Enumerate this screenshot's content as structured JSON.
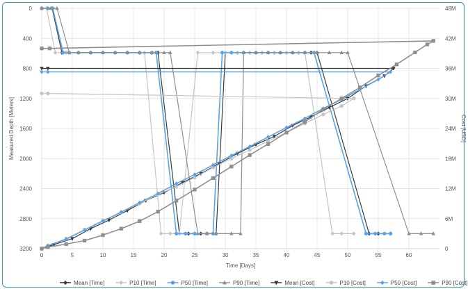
{
  "chart_data": {
    "type": "line",
    "x_axis": {
      "title": "Time [Days]",
      "range": [
        0,
        65
      ],
      "ticks": [
        0,
        5,
        10,
        15,
        20,
        25,
        30,
        35,
        40,
        45,
        50,
        55,
        60
      ]
    },
    "y_left": {
      "title": "Measured Depth [Meters]",
      "range": [
        0,
        3200
      ],
      "reversed": true,
      "ticks": [
        0,
        400,
        800,
        1200,
        1600,
        2000,
        2400,
        2800,
        3200
      ]
    },
    "y_right": {
      "title": "Cost [USD]",
      "range": [
        0,
        48
      ],
      "unit": "M",
      "ticks": [
        "0",
        "6M",
        "12M",
        "18M",
        "24M",
        "30M",
        "36M",
        "42M",
        "48M"
      ],
      "tick_values": [
        0,
        6,
        12,
        18,
        24,
        30,
        36,
        42,
        48
      ]
    },
    "grid": true,
    "legend_position": "bottom",
    "series": [
      {
        "name": "Mean [Time]",
        "axis": "left",
        "color": "#3a3a3a",
        "marker": "diamond",
        "width": 1.2,
        "points": [
          [
            0,
            0
          ],
          [
            1,
            0
          ],
          [
            1.7,
            0
          ],
          [
            3.3,
            590
          ],
          [
            4,
            590
          ],
          [
            6,
            590
          ],
          [
            8,
            590
          ],
          [
            10,
            590
          ],
          [
            12,
            590
          ],
          [
            14,
            590
          ],
          [
            16,
            590
          ],
          [
            18,
            590
          ],
          [
            19,
            590
          ],
          [
            22.5,
            3000
          ],
          [
            24,
            3000
          ],
          [
            26,
            3000
          ],
          [
            28.5,
            3000
          ],
          [
            30,
            590
          ],
          [
            32,
            590
          ],
          [
            34,
            590
          ],
          [
            36,
            590
          ],
          [
            38,
            590
          ],
          [
            40,
            590
          ],
          [
            42,
            590
          ],
          [
            44,
            590
          ],
          [
            45,
            590
          ],
          [
            53.5,
            3000
          ],
          [
            55,
            3000
          ],
          [
            57,
            3000
          ]
        ]
      },
      {
        "name": "P10 [Time]",
        "axis": "left",
        "color": "#c4c4c4",
        "marker": "diamond",
        "width": 1.2,
        "points": [
          [
            0,
            0
          ],
          [
            0.8,
            0
          ],
          [
            2.2,
            590
          ],
          [
            4,
            590
          ],
          [
            6,
            590
          ],
          [
            8,
            590
          ],
          [
            10,
            590
          ],
          [
            12,
            590
          ],
          [
            14,
            590
          ],
          [
            16,
            590
          ],
          [
            16.8,
            590
          ],
          [
            19.5,
            3000
          ],
          [
            21,
            3000
          ],
          [
            22.5,
            3000
          ],
          [
            25.5,
            590
          ],
          [
            28,
            590
          ],
          [
            30,
            590
          ],
          [
            32,
            590
          ],
          [
            34,
            590
          ],
          [
            36,
            590
          ],
          [
            38,
            590
          ],
          [
            40,
            590
          ],
          [
            42,
            590
          ],
          [
            43,
            590
          ],
          [
            47.5,
            3000
          ],
          [
            49,
            3000
          ],
          [
            51,
            3000
          ]
        ]
      },
      {
        "name": "P50 [Time]",
        "axis": "left",
        "color": "#5aa3e6",
        "marker": "circle",
        "width": 1.6,
        "points": [
          [
            0,
            0
          ],
          [
            1,
            0
          ],
          [
            1.8,
            0
          ],
          [
            3.5,
            590
          ],
          [
            4.5,
            590
          ],
          [
            6,
            590
          ],
          [
            8,
            590
          ],
          [
            10,
            590
          ],
          [
            12,
            590
          ],
          [
            14,
            590
          ],
          [
            16,
            590
          ],
          [
            18,
            590
          ],
          [
            18.7,
            590
          ],
          [
            22,
            3000
          ],
          [
            23.5,
            3000
          ],
          [
            25,
            3000
          ],
          [
            27,
            3000
          ],
          [
            28,
            3000
          ],
          [
            29.5,
            590
          ],
          [
            31,
            590
          ],
          [
            33,
            590
          ],
          [
            35,
            590
          ],
          [
            37,
            590
          ],
          [
            39,
            590
          ],
          [
            41,
            590
          ],
          [
            43,
            590
          ],
          [
            44.5,
            590
          ],
          [
            53,
            3000
          ],
          [
            54.5,
            3000
          ],
          [
            56,
            3000
          ],
          [
            57,
            3000
          ]
        ]
      },
      {
        "name": "P90 [Time]",
        "axis": "left",
        "color": "#8f8f8f",
        "marker": "triangle",
        "width": 1.2,
        "points": [
          [
            0,
            0
          ],
          [
            1.5,
            0
          ],
          [
            2.5,
            0
          ],
          [
            4.5,
            590
          ],
          [
            6,
            590
          ],
          [
            8,
            590
          ],
          [
            10,
            590
          ],
          [
            12,
            590
          ],
          [
            14,
            590
          ],
          [
            16,
            590
          ],
          [
            18,
            590
          ],
          [
            20,
            590
          ],
          [
            21,
            590
          ],
          [
            25.5,
            3000
          ],
          [
            27,
            3000
          ],
          [
            28.5,
            3000
          ],
          [
            31,
            3000
          ],
          [
            32.5,
            3000
          ],
          [
            33,
            590
          ],
          [
            35,
            590
          ],
          [
            37,
            590
          ],
          [
            39,
            590
          ],
          [
            41,
            590
          ],
          [
            43,
            590
          ],
          [
            45,
            590
          ],
          [
            47,
            590
          ],
          [
            49,
            590
          ],
          [
            50,
            590
          ],
          [
            60,
            3000
          ],
          [
            62,
            3000
          ],
          [
            64,
            3000
          ]
        ]
      },
      {
        "name": "Mean [Cost]",
        "axis": "right",
        "color": "#3a3a3a",
        "marker": "triangle-down",
        "width": 1.2,
        "points": [
          [
            0,
            36
          ],
          [
            1,
            36
          ],
          [
            57.5,
            36
          ],
          [
            56,
            34.5
          ],
          [
            53,
            32.5
          ],
          [
            50,
            30
          ],
          [
            47,
            28.2
          ],
          [
            44,
            26.3
          ],
          [
            41,
            24.6
          ],
          [
            38,
            22.4
          ],
          [
            35,
            20.8
          ],
          [
            32,
            19
          ],
          [
            29,
            17
          ],
          [
            26,
            15
          ],
          [
            23,
            13.2
          ],
          [
            20,
            11.2
          ],
          [
            17,
            9.6
          ],
          [
            14,
            7.6
          ],
          [
            11,
            5.7
          ],
          [
            8,
            4
          ],
          [
            5,
            2
          ],
          [
            2,
            0.8
          ],
          [
            0,
            0
          ]
        ]
      },
      {
        "name": "P10 [Cost]",
        "axis": "right",
        "color": "#c4c4c4",
        "marker": "circle",
        "width": 1.2,
        "points": [
          [
            0,
            31
          ],
          [
            1,
            31
          ],
          [
            51,
            30
          ],
          [
            49,
            28.5
          ],
          [
            46,
            26.8
          ],
          [
            43,
            25
          ],
          [
            40,
            23.2
          ],
          [
            37,
            21.5
          ],
          [
            34,
            19.7
          ],
          [
            31,
            18
          ],
          [
            28,
            16.2
          ],
          [
            25,
            14.2
          ],
          [
            22,
            12.4
          ],
          [
            19,
            10.8
          ],
          [
            16,
            9
          ],
          [
            13,
            7.3
          ],
          [
            10,
            5.6
          ],
          [
            7,
            3.8
          ],
          [
            4,
            2
          ],
          [
            1,
            0.6
          ],
          [
            0,
            0
          ]
        ]
      },
      {
        "name": "P50 [Cost]",
        "axis": "right",
        "color": "#5aa3e6",
        "marker": "diamond",
        "width": 1.6,
        "points": [
          [
            0,
            35.3
          ],
          [
            1,
            35.3
          ],
          [
            57,
            35.3
          ],
          [
            55,
            33.8
          ],
          [
            52,
            31.8
          ],
          [
            49,
            29.8
          ],
          [
            46,
            28
          ],
          [
            43,
            26
          ],
          [
            40,
            24.2
          ],
          [
            37,
            22.3
          ],
          [
            34,
            20.4
          ],
          [
            31,
            18.6
          ],
          [
            28,
            16.7
          ],
          [
            25,
            14.8
          ],
          [
            22,
            13
          ],
          [
            19,
            11
          ],
          [
            16,
            9.2
          ],
          [
            13,
            7.3
          ],
          [
            10,
            5.5
          ],
          [
            7,
            3.7
          ],
          [
            4,
            1.9
          ],
          [
            1,
            0.6
          ],
          [
            0,
            0
          ]
        ]
      },
      {
        "name": "P90 [Cost]",
        "axis": "right",
        "color": "#8f8f8f",
        "marker": "square",
        "width": 1.6,
        "points": [
          [
            0,
            40
          ],
          [
            1.3,
            40
          ],
          [
            64,
            41.5
          ],
          [
            63,
            40.8
          ],
          [
            61,
            39.2
          ],
          [
            58,
            36.8
          ],
          [
            55,
            34.6
          ],
          [
            52,
            32.2
          ],
          [
            49,
            30
          ],
          [
            46,
            27.8
          ],
          [
            43,
            25.3
          ],
          [
            40,
            23.2
          ],
          [
            37,
            20.9
          ],
          [
            34,
            18.7
          ],
          [
            31,
            16.4
          ],
          [
            28,
            14.1
          ],
          [
            25,
            11.8
          ],
          [
            22,
            9.6
          ],
          [
            19,
            7.4
          ],
          [
            16,
            5.5
          ],
          [
            13,
            4
          ],
          [
            10,
            2.7
          ],
          [
            7,
            1.6
          ],
          [
            4,
            0.9
          ],
          [
            1,
            0.3
          ],
          [
            0,
            0
          ]
        ]
      }
    ]
  }
}
